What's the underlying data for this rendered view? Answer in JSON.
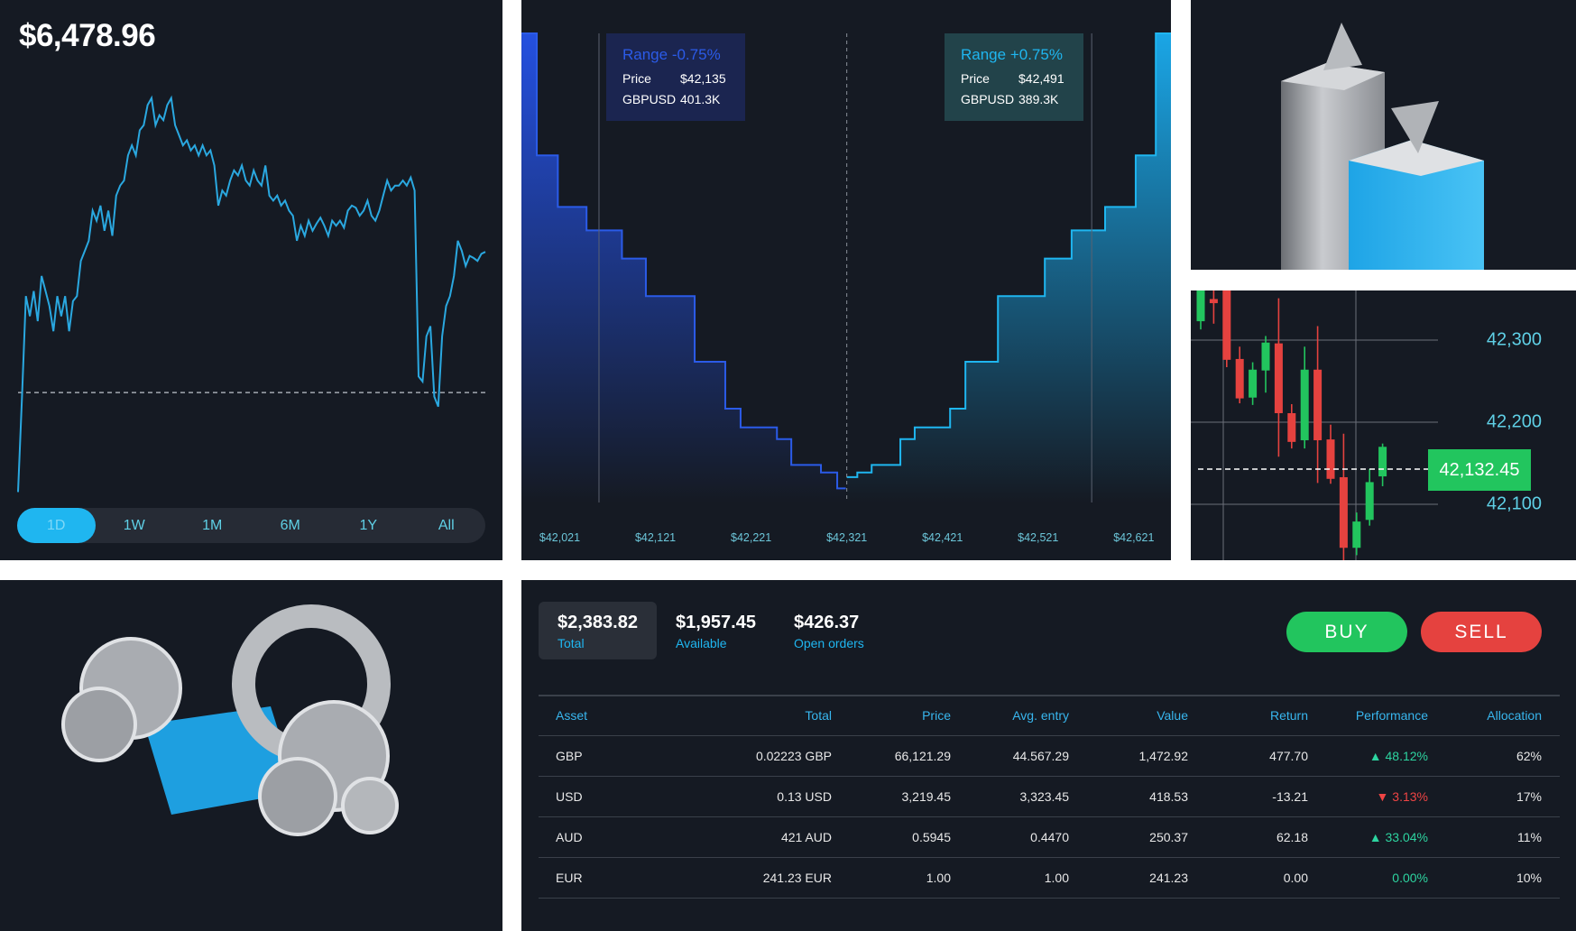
{
  "portfolio": {
    "balance": "$6,478.96",
    "time_ranges": [
      "1D",
      "1W",
      "1M",
      "6M",
      "1Y",
      "All"
    ],
    "active_range": "1D",
    "line_color": "#2aa8e0",
    "line_values": [
      5,
      100,
      200,
      180,
      205,
      175,
      220,
      205,
      190,
      165,
      200,
      180,
      200,
      165,
      195,
      200,
      235,
      245,
      255,
      285,
      275,
      290,
      265,
      285,
      260,
      300,
      310,
      315,
      340,
      350,
      340,
      365,
      370,
      390,
      397,
      370,
      380,
      375,
      390,
      397,
      370,
      360,
      350,
      355,
      345,
      350,
      340,
      350,
      340,
      345,
      330,
      290,
      305,
      300,
      315,
      325,
      320,
      330,
      315,
      310,
      325,
      315,
      310,
      330,
      300,
      295,
      300,
      290,
      295,
      285,
      280,
      255,
      270,
      260,
      275,
      265,
      272,
      278,
      270,
      260,
      275,
      270,
      275,
      268,
      285,
      290,
      288,
      280,
      285,
      295,
      280,
      275,
      285,
      300,
      315,
      305,
      310,
      310,
      315,
      310,
      318,
      305,
      120,
      115,
      160,
      170,
      100,
      90,
      160,
      190,
      200,
      220,
      255,
      245,
      230,
      240,
      238,
      235,
      242,
      244
    ],
    "reference_level": 104
  },
  "depth_chart": {
    "bid_color": "#2b5be8",
    "ask_color": "#1fb6f0",
    "x_ticks": [
      "$42,021",
      "$42,121",
      "$42,221",
      "$42,321",
      "$42,421",
      "$42,521",
      "$42,621"
    ],
    "x_tick_values": [
      42021,
      42121,
      42221,
      42321,
      42421,
      42521,
      42621
    ],
    "mid_price": 42321,
    "bids": [
      [
        41981,
        1.0
      ],
      [
        41997,
        0.74
      ],
      [
        42019,
        0.63
      ],
      [
        42049,
        0.58
      ],
      [
        42086,
        0.52
      ],
      [
        42111,
        0.44
      ],
      [
        42162,
        0.3
      ],
      [
        42194,
        0.2
      ],
      [
        42210,
        0.16
      ],
      [
        42248,
        0.135
      ],
      [
        42263,
        0.08
      ],
      [
        42294,
        0.064
      ],
      [
        42311,
        0.03
      ],
      [
        42320,
        0.03
      ]
    ],
    "asks": [
      [
        42321,
        0.054
      ],
      [
        42332,
        0.064
      ],
      [
        42347,
        0.08
      ],
      [
        42377,
        0.135
      ],
      [
        42392,
        0.16
      ],
      [
        42429,
        0.2
      ],
      [
        42445,
        0.3
      ],
      [
        42479,
        0.44
      ],
      [
        42528,
        0.52
      ],
      [
        42556,
        0.58
      ],
      [
        42591,
        0.63
      ],
      [
        42623,
        0.74
      ],
      [
        42644,
        1.0
      ],
      [
        42660,
        1.0
      ]
    ],
    "range_low": {
      "title": "Range -0.75%",
      "price_label": "Price",
      "price": "$42,135",
      "pair_label": "GBPUSD",
      "volume": "401.3K",
      "marker_price": 42062
    },
    "range_high": {
      "title": "Range +0.75%",
      "price_label": "Price",
      "price": "$42,491",
      "pair_label": "GBPUSD",
      "volume": "389.3K",
      "marker_price": 42577
    }
  },
  "candles": {
    "up_color": "#22c55e",
    "down_color": "#e5423f",
    "y_ticks": [
      "42,300",
      "42,200",
      "42,100"
    ],
    "y_tick_values": [
      42300,
      42200,
      42100
    ],
    "last_price": "42,132.45",
    "last_price_value": 42132.45,
    "ohlc": [
      [
        42323,
        42400,
        42313,
        42370
      ],
      [
        42350,
        42400,
        42320,
        42345
      ],
      [
        42400,
        42420,
        42267,
        42276
      ],
      [
        42277,
        42292,
        42223,
        42229
      ],
      [
        42230,
        42273,
        42221,
        42264
      ],
      [
        42263,
        42305,
        42236,
        42297
      ],
      [
        42296,
        42351,
        42158,
        42211
      ],
      [
        42211,
        42222,
        42168,
        42176
      ],
      [
        42178,
        42292,
        42168,
        42264
      ],
      [
        42264,
        42317,
        42126,
        42178
      ],
      [
        42179,
        42197,
        42125,
        42131
      ],
      [
        42133,
        42186,
        42000,
        42047
      ],
      [
        42047,
        42090,
        42038,
        42079
      ],
      [
        42081,
        42143,
        42074,
        42127
      ],
      [
        42134,
        42174,
        42122,
        42170
      ]
    ]
  },
  "account": {
    "cards": [
      {
        "value": "$2,383.82",
        "label": "Total"
      },
      {
        "value": "$1,957.45",
        "label": "Available"
      },
      {
        "value": "$426.37",
        "label": "Open orders"
      }
    ],
    "buy_label": "BUY",
    "sell_label": "SELL"
  },
  "holdings": {
    "columns": [
      "Asset",
      "Total",
      "Price",
      "Avg. entry",
      "Value",
      "Return",
      "Performance",
      "Allocation"
    ],
    "rows": [
      {
        "asset": "GBP",
        "total": "0.02223 GBP",
        "price": "66,121.29",
        "avg_entry": "44.567.29",
        "value": "1,472.92",
        "return": "477.70",
        "performance": "48.12%",
        "trend": "up",
        "allocation": "62%"
      },
      {
        "asset": "USD",
        "total": "0.13 USD",
        "price": "3,219.45",
        "avg_entry": "3,323.45",
        "value": "418.53",
        "return": "-13.21",
        "performance": "3.13%",
        "trend": "down",
        "allocation": "17%"
      },
      {
        "asset": "AUD",
        "total": "421 AUD",
        "price": "0.5945",
        "avg_entry": "0.4470",
        "value": "250.37",
        "return": "62.18",
        "performance": "33.04%",
        "trend": "up",
        "allocation": "11%"
      },
      {
        "asset": "EUR",
        "total": "241.23 EUR",
        "price": "1.00",
        "avg_entry": "1.00",
        "value": "241.23",
        "return": "0.00",
        "performance": "0.00%",
        "trend": "flat",
        "allocation": "10%"
      }
    ]
  }
}
